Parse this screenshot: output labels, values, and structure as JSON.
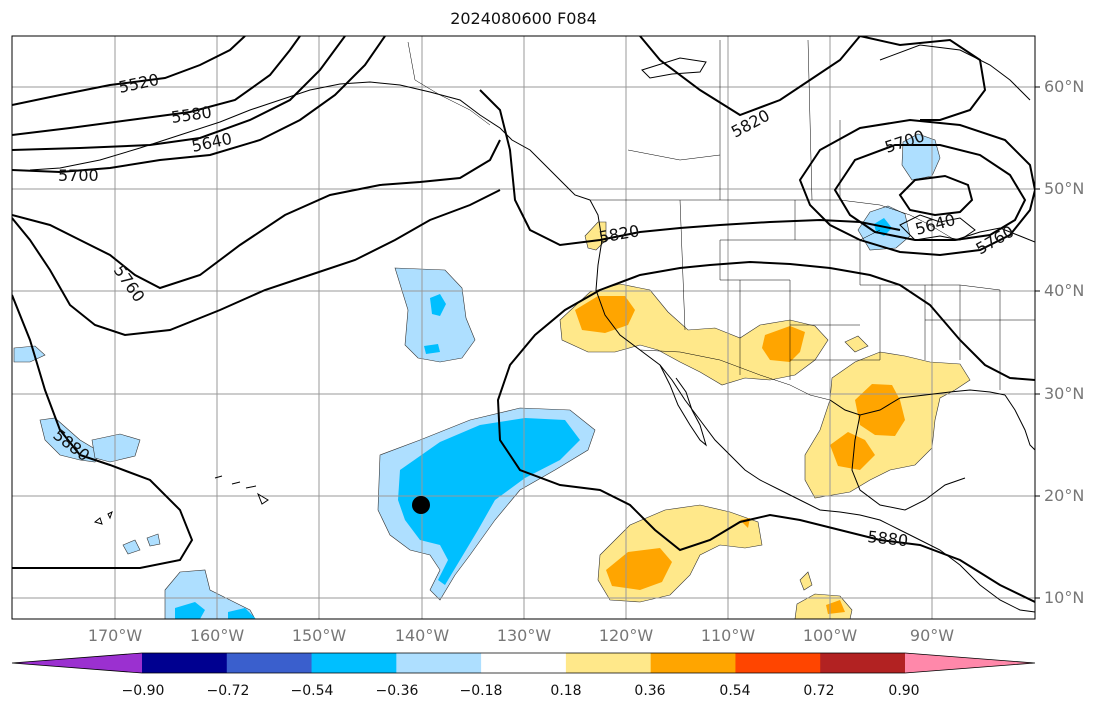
{
  "title": "2024080600 F084",
  "lat_labels": [
    "60°N",
    "50°N",
    "40°N",
    "30°N",
    "20°N",
    "10°N"
  ],
  "lon_labels": [
    "170°W",
    "160°W",
    "150°W",
    "140°W",
    "130°W",
    "120°W",
    "110°W",
    "100°W",
    "90°W"
  ],
  "contour_labels": [
    "5520",
    "5580",
    "5640",
    "5700",
    "5760",
    "5820",
    "5820",
    "5700",
    "5640",
    "5760",
    "5880",
    "5880"
  ],
  "colorbar": {
    "ticks": [
      "−0.90",
      "−0.72",
      "−0.54",
      "−0.36",
      "−0.18",
      "0.18",
      "0.36",
      "0.54",
      "0.72",
      "0.90"
    ],
    "colors": [
      "#9b30d0",
      "#000090",
      "#3a5fcd",
      "#00bfff",
      "#aedfff",
      "#ffffff",
      "#ffe88a",
      "#ffa500",
      "#ff4500",
      "#b22222",
      "#ff88aa"
    ]
  },
  "marker": {
    "lon": -139.5,
    "lat": 19
  }
}
